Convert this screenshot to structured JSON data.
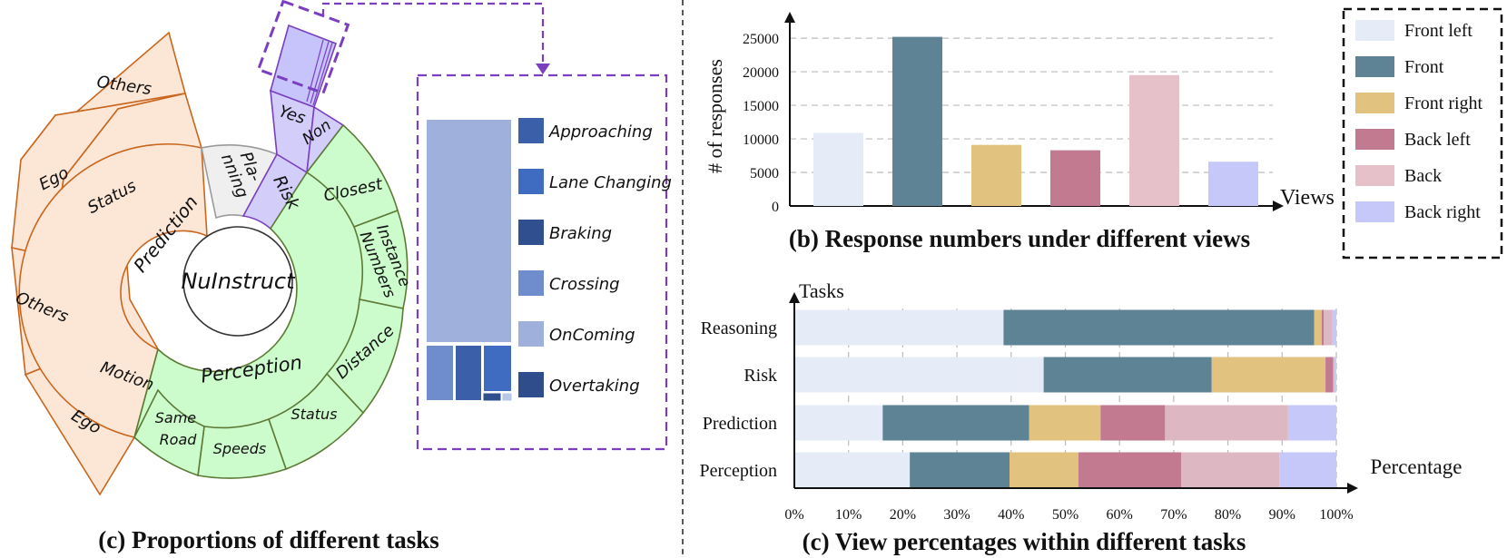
{
  "panel_a": {
    "caption": "(c) Proportions of different tasks",
    "center_label": "NuInstruct",
    "inner_ring": [
      {
        "label": "Prediction",
        "color": "#fce6d6",
        "stroke": "#c9661e"
      },
      {
        "label": "Pla-\nnning",
        "color": "#efefef",
        "stroke": "#9a9a9a"
      },
      {
        "label": "Risk",
        "color": "#d3cdfa",
        "stroke": "#7a3fc0"
      },
      {
        "label": "Perception",
        "color": "#ccfccc",
        "stroke": "#5c7a35"
      }
    ],
    "middle_ring": [
      "Status",
      "Motion",
      "Yes",
      "Non",
      "Closest",
      "Instance\nNumbers",
      "Distance",
      "Status",
      "Speeds",
      "Same\nRoad"
    ],
    "outer_ring": [
      "Others",
      "Ego",
      "Others",
      "Ego"
    ],
    "treemap_legend": [
      {
        "label": "Approaching",
        "color": "#3b5fa8"
      },
      {
        "label": "Lane Changing",
        "color": "#3f6cc0"
      },
      {
        "label": "Braking",
        "color": "#2f4f8f"
      },
      {
        "label": "Crossing",
        "color": "#6f8ccc"
      },
      {
        "label": "OnComing",
        "color": "#9fb0dc"
      },
      {
        "label": "Overtaking",
        "color": "#2e4d8a"
      }
    ]
  },
  "chart_data": [
    {
      "type": "bar",
      "title": "(b)  Response numbers under different views",
      "xlabel": "Views",
      "ylabel": "# of responses",
      "categories": [
        "Front left",
        "Front",
        "Front right",
        "Back left",
        "Back",
        "Back right"
      ],
      "values": [
        10900,
        25200,
        9100,
        8300,
        19500,
        6600
      ],
      "ylim": [
        0,
        25000
      ],
      "yticks": [
        "0",
        "5000",
        "10000",
        "15000",
        "20000",
        "25000"
      ],
      "grid": true,
      "colors": [
        "#e6ecf7",
        "#5e8394",
        "#e2c27f",
        "#c27a90",
        "#e6c1c9",
        "#c5c8f8"
      ],
      "legend_position": "right"
    },
    {
      "type": "bar",
      "orientation": "horizontal-stacked",
      "title": "(c) View percentages within different tasks",
      "xlabel": "Percentage",
      "ylabel": "Tasks",
      "categories": [
        "Reasoning",
        "Risk",
        "Prediction",
        "Perception"
      ],
      "xticks": [
        "0%",
        "10%",
        "20%",
        "30%",
        "40%",
        "50%",
        "60%",
        "70%",
        "80%",
        "90%",
        "100%"
      ],
      "series": [
        {
          "name": "Front left",
          "values": [
            38.6,
            46.0,
            16.3,
            21.3
          ]
        },
        {
          "name": "Front",
          "values": [
            57.3,
            31.0,
            27.0,
            18.4
          ]
        },
        {
          "name": "Front right",
          "values": [
            1.4,
            21.0,
            13.2,
            12.7
          ]
        },
        {
          "name": "Back left",
          "values": [
            0.4,
            1.4,
            11.9,
            19.0
          ]
        },
        {
          "name": "Back",
          "values": [
            1.6,
            0.3,
            22.7,
            18.1
          ]
        },
        {
          "name": "Back right",
          "values": [
            0.7,
            0.3,
            8.9,
            10.5
          ]
        }
      ],
      "colors": [
        "#e6ecf7",
        "#5e8394",
        "#e2c27f",
        "#c27a90",
        "#ddb8c2",
        "#c5c8f8"
      ]
    }
  ]
}
